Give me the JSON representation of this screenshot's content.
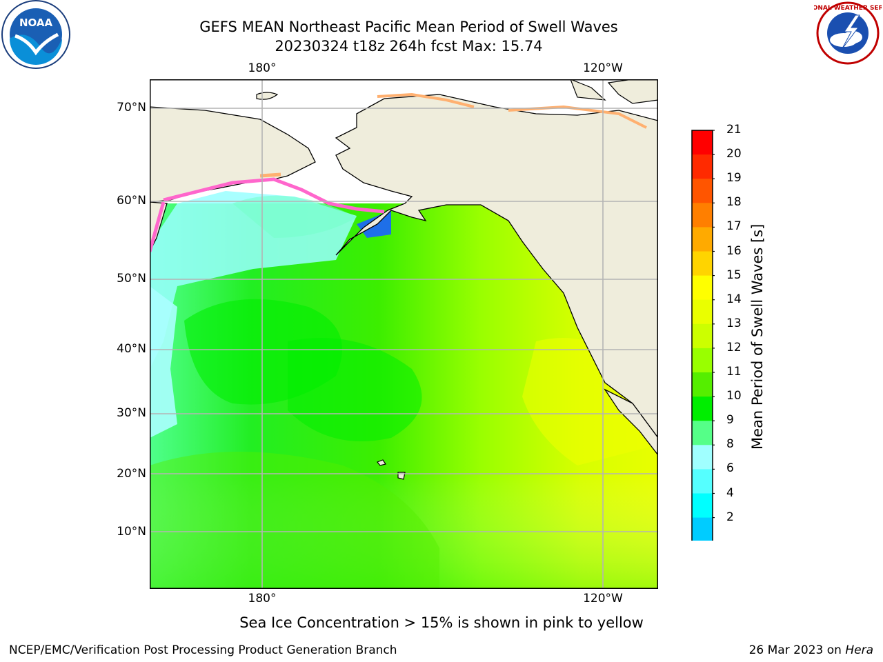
{
  "header": {
    "title_line1": "GEFS MEAN Northeast Pacific Mean Period of Swell Waves",
    "title_line2": "20230324 t18z 264h fcst   Max: 15.74"
  },
  "logos": {
    "left": "NOAA",
    "right": "NATIONAL WEATHER SERVICE"
  },
  "map": {
    "lat_labels": [
      "70°N",
      "60°N",
      "50°N",
      "40°N",
      "30°N",
      "20°N",
      "10°N"
    ],
    "lon_labels_top": [
      "180°",
      "120°W"
    ],
    "lon_labels_bottom": [
      "180°",
      "120°W"
    ],
    "colors": {
      "land": "#efeddc",
      "grid": "#b4b4b4",
      "ice_pink": "#ff66cc",
      "ice_orange": "#ffb070"
    }
  },
  "colorbar": {
    "title": "Mean Period of Swell Waves [s]",
    "ticks": [
      "21",
      "20",
      "19",
      "18",
      "17",
      "16",
      "15",
      "14",
      "13",
      "12",
      "11",
      "10",
      "9",
      "8",
      "6",
      "4",
      "2"
    ],
    "colors_top_to_bottom": [
      "#ff0000",
      "#ff2a00",
      "#ff5500",
      "#ff7f00",
      "#ffaa00",
      "#ffd400",
      "#ffff00",
      "#eaff00",
      "#ccff00",
      "#99ff00",
      "#55ee00",
      "#00ee00",
      "#55ff88",
      "#a0ffff",
      "#55ffff",
      "#00ffff",
      "#00ccff",
      "#0077ff"
    ],
    "extend_color": "#0000ff"
  },
  "caption": "Sea Ice Concentration > 15% is shown in pink to yellow",
  "footer": {
    "left": "NCEP/EMC/Verification Post Processing Product Generation Branch",
    "right_prefix": "26 Mar 2023 on ",
    "right_host": "Hera"
  }
}
